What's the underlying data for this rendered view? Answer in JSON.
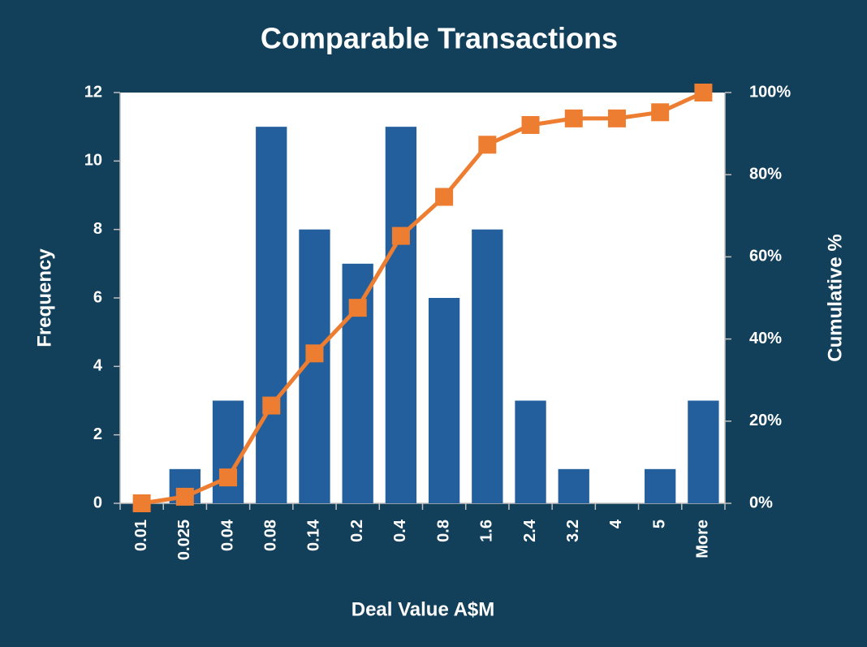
{
  "chart_data": {
    "type": "bar_line",
    "title": "Comparable Transactions",
    "x_label": "Deal Value A$M",
    "y_label": "Frequency",
    "y2_label": "Cumulative %",
    "categories": [
      "0.01",
      "0.025",
      "0.04",
      "0.08",
      "0.14",
      "0.2",
      "0.4",
      "0.8",
      "1.6",
      "2.4",
      "3.2",
      "4",
      "5",
      "More"
    ],
    "series": [
      {
        "name": "Frequency",
        "type": "bar",
        "color": "#235f9c",
        "values": [
          0,
          1,
          3,
          11,
          8,
          7,
          11,
          6,
          8,
          3,
          1,
          0,
          1,
          3
        ]
      },
      {
        "name": "Cumulative %",
        "type": "line",
        "axis": "y2",
        "color": "#ed7d31",
        "values": [
          0,
          1.6,
          6.3,
          23.8,
          36.5,
          47.6,
          65.1,
          74.6,
          87.3,
          92.1,
          93.7,
          93.7,
          95.2,
          100
        ]
      }
    ],
    "ylim": [
      0,
      12
    ],
    "yticks": [
      0,
      2,
      4,
      6,
      8,
      10,
      12
    ],
    "y2lim": [
      0,
      100
    ],
    "y2ticks": [
      {
        "value": 0,
        "label": "0%"
      },
      {
        "value": 20,
        "label": "20%"
      },
      {
        "value": 40,
        "label": "40%"
      },
      {
        "value": 60,
        "label": "60%"
      },
      {
        "value": 80,
        "label": "80%"
      },
      {
        "value": 100,
        "label": "100%"
      }
    ],
    "grid": false,
    "background": "#123f5a"
  }
}
